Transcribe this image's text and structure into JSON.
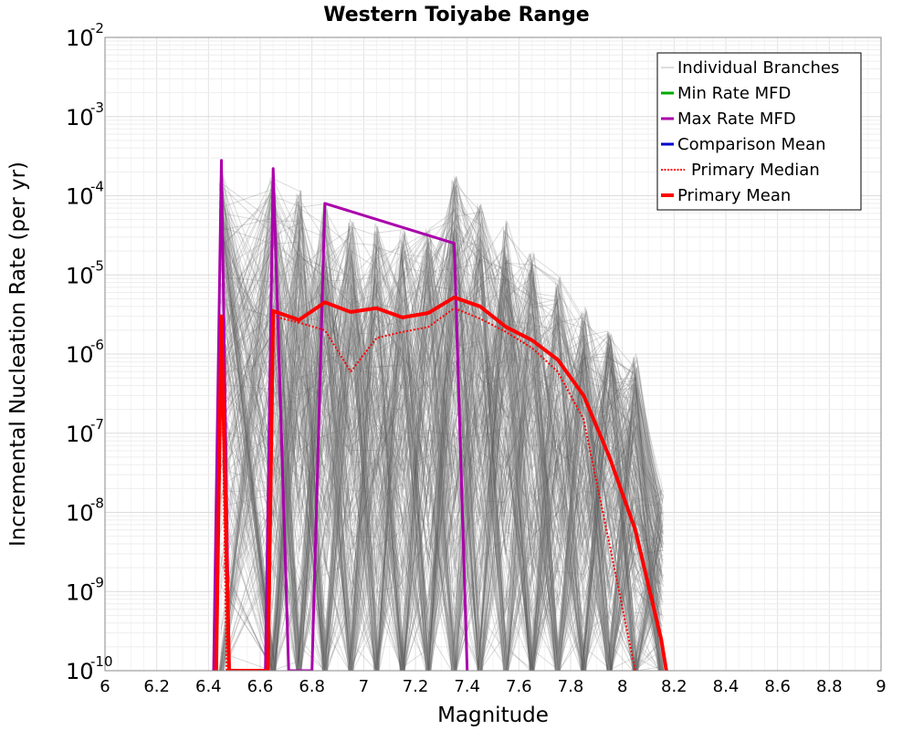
{
  "chart_data": {
    "type": "line",
    "title": "Western Toiyabe Range",
    "xlabel": "Magnitude",
    "ylabel": "Incremental Nucleation Rate (per yr)",
    "xlim": [
      6,
      9
    ],
    "ylim": [
      1e-10,
      0.01
    ],
    "yscale": "log",
    "grid": true,
    "legend_position": "top-right",
    "x_ticks": [
      "6",
      "6.2",
      "6.4",
      "6.6",
      "6.8",
      "7",
      "7.2",
      "7.4",
      "7.6",
      "7.8",
      "8",
      "8.2",
      "8.4",
      "8.6",
      "8.8",
      "9"
    ],
    "y_ticks": [
      {
        "base": "10",
        "exp": "-2"
      },
      {
        "base": "10",
        "exp": "-3"
      },
      {
        "base": "10",
        "exp": "-4"
      },
      {
        "base": "10",
        "exp": "-5"
      },
      {
        "base": "10",
        "exp": "-6"
      },
      {
        "base": "10",
        "exp": "-7"
      },
      {
        "base": "10",
        "exp": "-8"
      },
      {
        "base": "10",
        "exp": "-9"
      },
      {
        "base": "10",
        "exp": "-10"
      }
    ],
    "legend": [
      {
        "label": "Individual Branches",
        "color": "#bbbbbb",
        "style": "solid",
        "width": 1
      },
      {
        "label": "Min Rate MFD",
        "color": "#00aa00",
        "style": "solid",
        "width": 3
      },
      {
        "label": "Max Rate MFD",
        "color": "#aa00aa",
        "style": "solid",
        "width": 3
      },
      {
        "label": "Comparison Mean",
        "color": "#0000cc",
        "style": "solid",
        "width": 3
      },
      {
        "label": "Primary Median",
        "color": "#ff0000",
        "style": "dotted",
        "width": 2
      },
      {
        "label": "Primary Mean",
        "color": "#ff0000",
        "style": "solid",
        "width": 4
      }
    ],
    "series": [
      {
        "name": "Max Rate MFD",
        "color": "#aa00aa",
        "x": [
          6.42,
          6.45,
          6.48,
          6.62,
          6.65,
          6.71,
          6.8,
          6.85,
          7.35,
          7.4
        ],
        "y": [
          1e-10,
          0.00028,
          1e-10,
          1e-10,
          0.00022,
          1e-10,
          1e-10,
          8e-05,
          2.5e-05,
          1e-10
        ]
      },
      {
        "name": "Primary Median",
        "color": "#ff0000",
        "x": [
          6.43,
          6.45,
          6.47,
          6.63,
          6.65,
          6.75,
          6.85,
          6.95,
          7.05,
          7.15,
          7.25,
          7.35,
          7.45,
          7.55,
          7.65,
          7.75,
          7.85,
          7.95,
          8.05
        ],
        "y": [
          1e-10,
          2e-06,
          1e-10,
          1e-10,
          3e-06,
          2.5e-06,
          2e-06,
          6e-07,
          1.6e-06,
          1.9e-06,
          2.2e-06,
          3.8e-06,
          2.8e-06,
          1.9e-06,
          1.2e-06,
          6e-07,
          1.5e-07,
          4e-09,
          1e-10
        ]
      },
      {
        "name": "Primary Mean",
        "color": "#ff0000",
        "x": [
          6.43,
          6.45,
          6.48,
          6.63,
          6.65,
          6.75,
          6.85,
          6.95,
          7.05,
          7.15,
          7.25,
          7.35,
          7.45,
          7.55,
          7.65,
          7.75,
          7.85,
          7.95,
          8.05,
          8.15,
          8.17
        ],
        "y": [
          1e-10,
          3e-06,
          1e-10,
          1e-10,
          3.5e-06,
          2.7e-06,
          4.5e-06,
          3.4e-06,
          3.8e-06,
          2.9e-06,
          3.3e-06,
          5.2e-06,
          4e-06,
          2.2e-06,
          1.5e-06,
          8.5e-07,
          3e-07,
          5e-08,
          6e-09,
          2.5e-10,
          1e-10
        ]
      }
    ],
    "branch_bundle": {
      "color": "#555555",
      "x": [
        6.45,
        6.65,
        6.75,
        6.85,
        6.95,
        7.05,
        7.15,
        7.25,
        7.35,
        7.45,
        7.55,
        7.65,
        7.75,
        7.85,
        7.95,
        8.05,
        8.15
      ],
      "upper": [
        0.0002,
        0.00018,
        0.00012,
        8e-05,
        5e-05,
        4.5e-05,
        4e-05,
        4e-05,
        0.00018,
        8e-05,
        5e-05,
        2e-05,
        1e-05,
        4e-06,
        2e-06,
        1e-06,
        2e-08
      ],
      "lower": [
        1e-10,
        1e-10,
        1e-10,
        1e-10,
        1e-10,
        1e-10,
        1e-10,
        1e-10,
        1e-10,
        1e-10,
        1e-10,
        1e-10,
        1e-10,
        1e-10,
        1e-10,
        1e-10,
        1e-10
      ]
    }
  }
}
